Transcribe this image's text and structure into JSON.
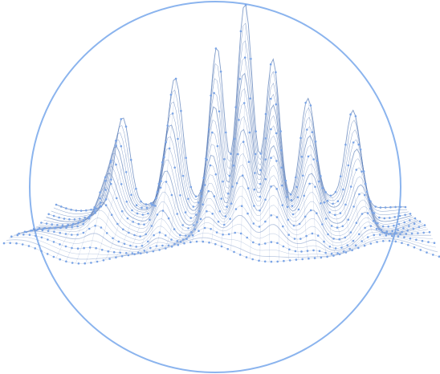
{
  "illustration": {
    "name": "wireframe-wave-terrain",
    "colors": {
      "circle": "#8bb4ee",
      "line": "#5a7db8",
      "dot": "#7aa4e6",
      "background": "#ffffff"
    }
  }
}
